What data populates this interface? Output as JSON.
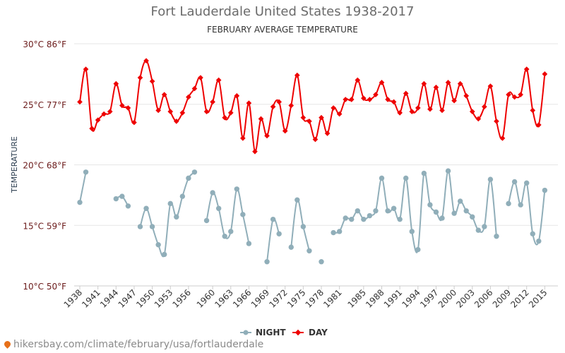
{
  "chart_data": {
    "type": "line",
    "title": "Fort Lauderdale United States 1938-2017",
    "subtitle": "FEBRUARY AVERAGE TEMPERATURE",
    "ylabel": "TEMPERATURE",
    "ylim": [
      10,
      30
    ],
    "yticks": [
      {
        "value": 30,
        "label": "30°C 86°F"
      },
      {
        "value": 25,
        "label": "25°C 77°F"
      },
      {
        "value": 20,
        "label": "20°C 68°F"
      },
      {
        "value": 15,
        "label": "15°C 59°F"
      },
      {
        "value": 10,
        "label": "10°C 50°F"
      }
    ],
    "xlim": [
      1938,
      2017
    ],
    "xtick_labels": [
      "1938",
      "1941",
      "1944",
      "1947",
      "1950",
      "1953",
      "1956",
      "1960",
      "1963",
      "1966",
      "1969",
      "1972",
      "1975",
      "1978",
      "1981",
      "1985",
      "1988",
      "1991",
      "1994",
      "1997",
      "2000",
      "2003",
      "2006",
      "2009",
      "2012",
      "2015"
    ],
    "series": [
      {
        "name": "NIGHT",
        "color": "#90aeb9",
        "points": [
          [
            1938,
            16.9
          ],
          [
            1939,
            19.4
          ],
          [
            1944,
            17.2
          ],
          [
            1945,
            17.4
          ],
          [
            1946,
            16.6
          ],
          [
            1948,
            14.9
          ],
          [
            1949,
            16.4
          ],
          [
            1950,
            14.9
          ],
          [
            1951,
            13.4
          ],
          [
            1952,
            12.6
          ],
          [
            1953,
            16.8
          ],
          [
            1954,
            15.7
          ],
          [
            1955,
            17.4
          ],
          [
            1956,
            18.9
          ],
          [
            1957,
            19.4
          ],
          [
            1959,
            15.4
          ],
          [
            1960,
            17.7
          ],
          [
            1961,
            16.4
          ],
          [
            1962,
            14.1
          ],
          [
            1963,
            14.5
          ],
          [
            1964,
            18.0
          ],
          [
            1965,
            15.9
          ],
          [
            1966,
            13.5
          ],
          [
            1969,
            12.0
          ],
          [
            1970,
            15.5
          ],
          [
            1971,
            14.3
          ],
          [
            1973,
            13.2
          ],
          [
            1974,
            17.1
          ],
          [
            1975,
            14.9
          ],
          [
            1976,
            12.9
          ],
          [
            1978,
            12.0
          ],
          [
            1980,
            14.4
          ],
          [
            1981,
            14.5
          ],
          [
            1982,
            15.6
          ],
          [
            1983,
            15.5
          ],
          [
            1984,
            16.2
          ],
          [
            1985,
            15.5
          ],
          [
            1986,
            15.8
          ],
          [
            1987,
            16.2
          ],
          [
            1988,
            18.9
          ],
          [
            1989,
            16.2
          ],
          [
            1990,
            16.4
          ],
          [
            1991,
            15.5
          ],
          [
            1992,
            18.9
          ],
          [
            1993,
            14.5
          ],
          [
            1994,
            13.0
          ],
          [
            1995,
            19.3
          ],
          [
            1996,
            16.7
          ],
          [
            1997,
            16.1
          ],
          [
            1998,
            15.6
          ],
          [
            1999,
            19.5
          ],
          [
            2000,
            16.0
          ],
          [
            2001,
            17.0
          ],
          [
            2002,
            16.2
          ],
          [
            2003,
            15.7
          ],
          [
            2004,
            14.6
          ],
          [
            2005,
            14.9
          ],
          [
            2006,
            18.8
          ],
          [
            2007,
            14.1
          ],
          [
            2009,
            16.8
          ],
          [
            2010,
            18.6
          ],
          [
            2011,
            16.7
          ],
          [
            2012,
            18.5
          ],
          [
            2013,
            14.3
          ],
          [
            2014,
            13.7
          ],
          [
            2015,
            17.9
          ]
        ]
      },
      {
        "name": "DAY",
        "color": "#ee0000",
        "points": [
          [
            1938,
            25.2
          ],
          [
            1939,
            27.9
          ],
          [
            1940,
            23.0
          ],
          [
            1941,
            23.7
          ],
          [
            1942,
            24.2
          ],
          [
            1943,
            24.4
          ],
          [
            1944,
            26.7
          ],
          [
            1945,
            24.9
          ],
          [
            1946,
            24.7
          ],
          [
            1947,
            23.5
          ],
          [
            1948,
            27.2
          ],
          [
            1949,
            28.6
          ],
          [
            1950,
            26.9
          ],
          [
            1951,
            24.5
          ],
          [
            1952,
            25.8
          ],
          [
            1953,
            24.4
          ],
          [
            1954,
            23.6
          ],
          [
            1955,
            24.3
          ],
          [
            1956,
            25.6
          ],
          [
            1957,
            26.3
          ],
          [
            1958,
            27.2
          ],
          [
            1959,
            24.4
          ],
          [
            1960,
            25.2
          ],
          [
            1961,
            27.0
          ],
          [
            1962,
            23.9
          ],
          [
            1963,
            24.3
          ],
          [
            1964,
            25.7
          ],
          [
            1965,
            22.2
          ],
          [
            1966,
            25.1
          ],
          [
            1967,
            21.1
          ],
          [
            1968,
            23.8
          ],
          [
            1969,
            22.4
          ],
          [
            1970,
            24.8
          ],
          [
            1971,
            25.2
          ],
          [
            1972,
            22.8
          ],
          [
            1973,
            24.9
          ],
          [
            1974,
            27.4
          ],
          [
            1975,
            23.9
          ],
          [
            1976,
            23.6
          ],
          [
            1977,
            22.1
          ],
          [
            1978,
            23.9
          ],
          [
            1979,
            22.6
          ],
          [
            1980,
            24.7
          ],
          [
            1981,
            24.2
          ],
          [
            1982,
            25.4
          ],
          [
            1983,
            25.4
          ],
          [
            1984,
            27.0
          ],
          [
            1985,
            25.5
          ],
          [
            1986,
            25.4
          ],
          [
            1987,
            25.8
          ],
          [
            1988,
            26.8
          ],
          [
            1989,
            25.4
          ],
          [
            1990,
            25.2
          ],
          [
            1991,
            24.3
          ],
          [
            1992,
            25.9
          ],
          [
            1993,
            24.4
          ],
          [
            1994,
            24.7
          ],
          [
            1995,
            26.7
          ],
          [
            1996,
            24.6
          ],
          [
            1997,
            26.4
          ],
          [
            1998,
            24.5
          ],
          [
            1999,
            26.8
          ],
          [
            2000,
            25.3
          ],
          [
            2001,
            26.7
          ],
          [
            2002,
            25.7
          ],
          [
            2003,
            24.4
          ],
          [
            2004,
            23.8
          ],
          [
            2005,
            24.8
          ],
          [
            2006,
            26.5
          ],
          [
            2007,
            23.6
          ],
          [
            2008,
            22.2
          ],
          [
            2009,
            25.8
          ],
          [
            2010,
            25.6
          ],
          [
            2011,
            25.8
          ],
          [
            2012,
            27.9
          ],
          [
            2013,
            24.5
          ],
          [
            2014,
            23.3
          ],
          [
            2015,
            27.5
          ]
        ]
      }
    ]
  },
  "legend": {
    "night_label": "NIGHT",
    "day_label": "DAY"
  },
  "footer": {
    "text": "hikersbay.com/climate/february/usa/fortlauderdale"
  }
}
